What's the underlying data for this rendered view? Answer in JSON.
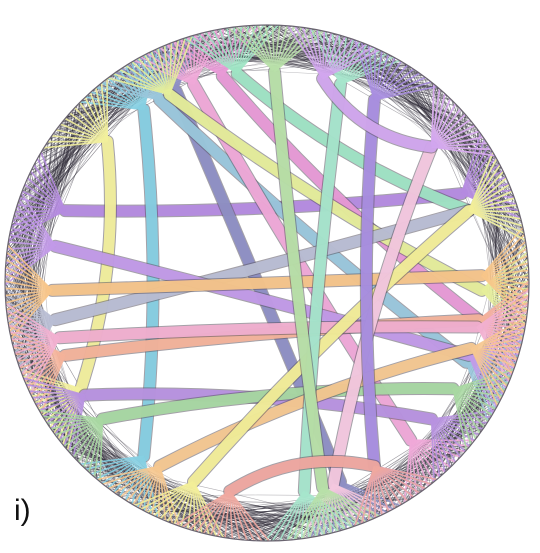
{
  "figure": {
    "panel_label": "i)",
    "description_kind": "circular edge-bundled graph",
    "colors": {
      "background": "#ffffff",
      "rim_edges": "#2f2b38",
      "outline": "#6a6470"
    },
    "bundles": [
      {
        "name": "purple",
        "color": "#b58be0",
        "from_deg": 200,
        "to_deg": 335
      },
      {
        "name": "slate-blue",
        "color": "#8e8fc4",
        "from_deg": 245,
        "to_deg": 70
      },
      {
        "name": "sky-blue",
        "color": "#86cfe2",
        "from_deg": 235,
        "to_deg": 125
      },
      {
        "name": "light-blue",
        "color": "#9ac7dc",
        "from_deg": 240,
        "to_deg": 22
      },
      {
        "name": "pink",
        "color": "#e89ad6",
        "from_deg": 258,
        "to_deg": 10
      },
      {
        "name": "pink-2",
        "color": "#f0a9d8",
        "from_deg": 250,
        "to_deg": 48
      },
      {
        "name": "lime",
        "color": "#e6ee9a",
        "from_deg": 243,
        "to_deg": 2
      },
      {
        "name": "yellow",
        "color": "#f2ef9c",
        "from_deg": 222,
        "to_deg": 150
      },
      {
        "name": "mint",
        "color": "#9fe4c4",
        "from_deg": 262,
        "to_deg": 340
      },
      {
        "name": "grey-blue",
        "color": "#b9bed4",
        "from_deg": 170,
        "to_deg": 340
      },
      {
        "name": "violet",
        "color": "#c29ae8",
        "from_deg": 190,
        "to_deg": 20
      },
      {
        "name": "salmon",
        "color": "#f4b39a",
        "from_deg": 160,
        "to_deg": 10
      },
      {
        "name": "orange",
        "color": "#f7c58a",
        "from_deg": 178,
        "to_deg": 358
      },
      {
        "name": "rose",
        "color": "#f2b0d0",
        "from_deg": 165,
        "to_deg": 12
      },
      {
        "name": "lavender",
        "color": "#b892e0",
        "from_deg": 148,
        "to_deg": 40
      },
      {
        "name": "green",
        "color": "#a8d8a2",
        "from_deg": 140,
        "to_deg": 30
      },
      {
        "name": "peach",
        "color": "#f6c890",
        "from_deg": 120,
        "to_deg": 18
      },
      {
        "name": "yellow-2",
        "color": "#f3ee98",
        "from_deg": 110,
        "to_deg": 340
      },
      {
        "name": "pale-pink",
        "color": "#f4c8df",
        "from_deg": 72,
        "to_deg": 320
      },
      {
        "name": "mint-2",
        "color": "#a6e6cc",
        "from_deg": 80,
        "to_deg": 290
      },
      {
        "name": "purple-2",
        "color": "#a98ee0",
        "from_deg": 300,
        "to_deg": 60
      },
      {
        "name": "green-2",
        "color": "#b8e0a8",
        "from_deg": 272,
        "to_deg": 75
      },
      {
        "name": "lilac",
        "color": "#d2a6ee",
        "from_deg": 285,
        "to_deg": 320
      },
      {
        "name": "salmon-2",
        "color": "#f0a8a0",
        "from_deg": 100,
        "to_deg": 60
      }
    ]
  }
}
